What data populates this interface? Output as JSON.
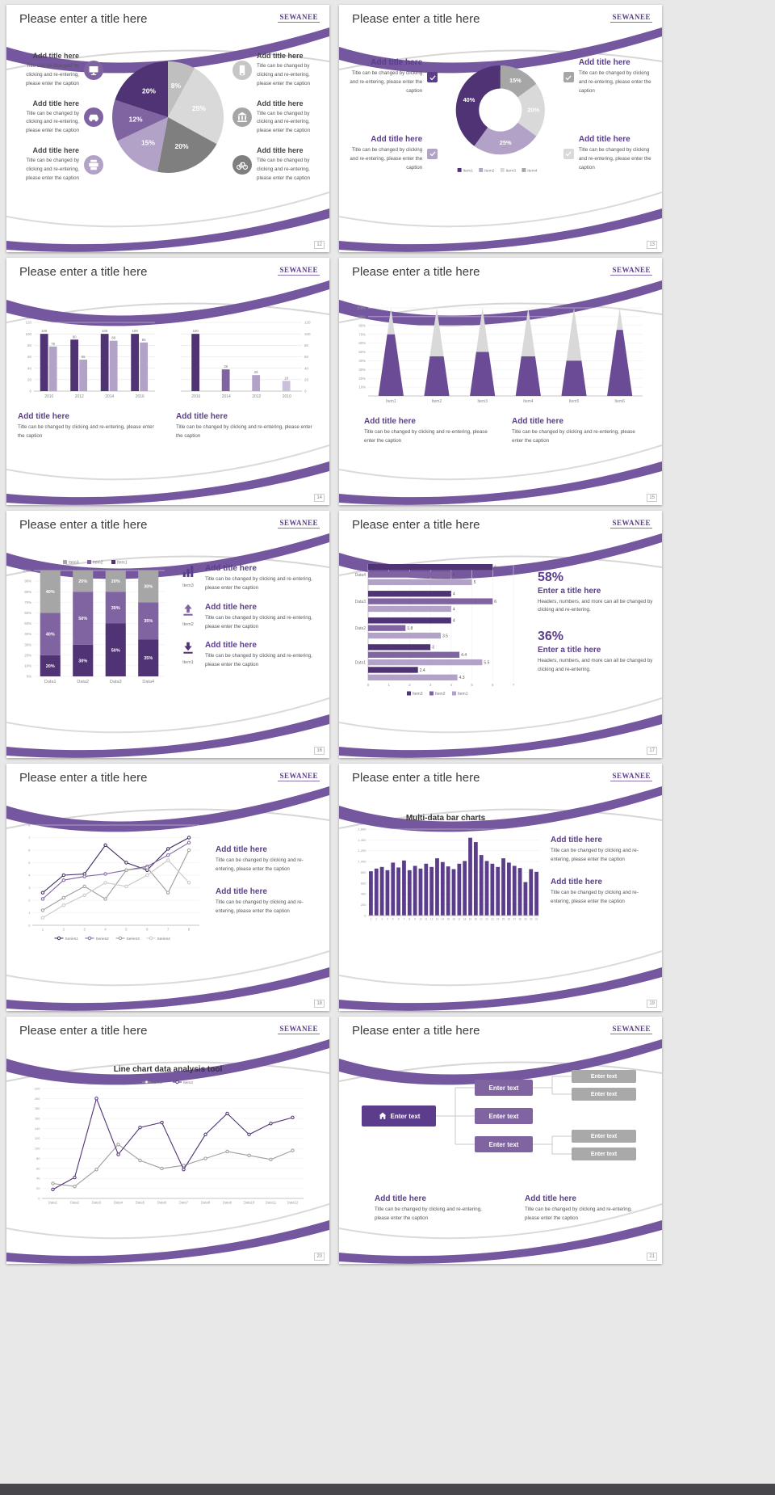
{
  "page": {
    "background_color": "#e8e8e8",
    "bottom_bar_color": "#46464b"
  },
  "theme": {
    "accent_purple": "#5b3d8c",
    "purple_dark": "#4f3374",
    "purple_mid": "#8064a2",
    "purple_light": "#b3a2c7",
    "ribbon_purple": "#75579f",
    "gray_dark": "#7f7f7f",
    "gray": "#a6a6a6",
    "gray_light": "#d9d9d9"
  },
  "common": {
    "slide_title": "Please enter a title here",
    "logo_text": "SEWANEE",
    "add_title": "Add title here",
    "caption": "Title can be changed by clicking and re-entering, please enter the caption",
    "stat_caption": "Headers, numbers, and more can all be changed by clicking and re-entering.",
    "enter_title": "Enter a title here",
    "enter_text": "Enter text"
  },
  "slides": {
    "s12": {
      "page": "12",
      "blocks": [
        {
          "icon": "monitor"
        },
        {
          "icon": "car"
        },
        {
          "icon": "printer"
        },
        {
          "icon": "phone"
        },
        {
          "icon": "bank"
        },
        {
          "icon": "bicycle"
        }
      ]
    },
    "s13": {
      "page": "13",
      "checkboxes": [
        {
          "icon": "check",
          "color": "#5b3d8c"
        },
        {
          "icon": "check",
          "color": "#a6a6a6"
        },
        {
          "icon": "check",
          "color": "#b3a2c7"
        },
        {
          "icon": "check",
          "color": "#d9d9d9"
        }
      ]
    },
    "s14": {
      "page": "14"
    },
    "s15": {
      "page": "15"
    },
    "s16": {
      "page": "16",
      "items": [
        {
          "icon": "chart",
          "name": "Item3"
        },
        {
          "icon": "upload",
          "name": "Item2"
        },
        {
          "icon": "download",
          "name": "Item1"
        }
      ]
    },
    "s17": {
      "page": "17",
      "stats": [
        {
          "value": "58%"
        },
        {
          "value": "36%"
        }
      ]
    },
    "s18": {
      "page": "18"
    },
    "s19": {
      "page": "19"
    },
    "s20": {
      "page": "20"
    },
    "s21": {
      "page": "21",
      "icon": "home"
    }
  },
  "chart_data": [
    {
      "type": "pie",
      "slide": "12",
      "values": [
        8,
        25,
        20,
        15,
        12,
        20
      ],
      "labels": [
        "8%",
        "25%",
        "20%",
        "15%",
        "12%",
        "20%"
      ],
      "colors": [
        "#bfbfbf",
        "#d9d9d9",
        "#7f7f7f",
        "#b3a2c7",
        "#8064a2",
        "#4f3374"
      ]
    },
    {
      "type": "donut",
      "slide": "13",
      "values": [
        15,
        20,
        25,
        40
      ],
      "labels": [
        "15%",
        "20%",
        "25%",
        "40%"
      ],
      "colors": [
        "#a6a6a6",
        "#d9d9d9",
        "#b3a2c7",
        "#4f3374"
      ],
      "legend": [
        {
          "name": "Item1",
          "color": "#4f3374"
        },
        {
          "name": "Item2",
          "color": "#b3a2c7"
        },
        {
          "name": "Item3",
          "color": "#d9d9d9"
        },
        {
          "name": "Item4",
          "color": "#a6a6a6"
        }
      ]
    },
    {
      "type": "groupbar",
      "slide": "14",
      "axis": "left",
      "categories": [
        "2010",
        "2012",
        "2014",
        "2016"
      ],
      "series": [
        {
          "name": "Series1",
          "color": "#4f3374",
          "values": [
            100,
            90,
            100,
            100
          ]
        },
        {
          "name": "Series2",
          "color": "#b3a2c7",
          "values": [
            78,
            55,
            88,
            85
          ]
        }
      ],
      "ymax": 120,
      "yticks": [
        0,
        20,
        40,
        60,
        80,
        100,
        120
      ]
    },
    {
      "type": "groupbar",
      "slide": "14",
      "axis": "right",
      "categories": [
        "2016",
        "2014",
        "2012",
        "2010"
      ],
      "series": [
        {
          "name": "Series1",
          "colors": [
            "#4f3374",
            "#8064a2",
            "#b3a2c7",
            "#cbc0dc"
          ],
          "values": [
            100,
            38,
            28,
            18
          ]
        }
      ],
      "ymax": 120,
      "yticks": [
        0,
        20,
        40,
        60,
        80,
        100,
        120
      ]
    },
    {
      "type": "cone",
      "slide": "15",
      "categories": [
        "Item1",
        "Item2",
        "Item3",
        "Item4",
        "Item5",
        "Item6"
      ],
      "values": [
        70,
        45,
        50,
        45,
        40,
        75
      ],
      "total": 100,
      "cone_color": "#6b4a96",
      "rest_color": "#d9d9d9",
      "yticks": [
        "10%",
        "20%",
        "30%",
        "40%",
        "50%",
        "60%",
        "70%",
        "80%",
        "90%",
        "100%"
      ]
    },
    {
      "type": "stackbar",
      "slide": "16",
      "categories": [
        "Data1",
        "Data2",
        "Data3",
        "Data4"
      ],
      "series": [
        {
          "name": "Item1",
          "color": "#4f3374",
          "values": [
            20,
            30,
            50,
            35
          ]
        },
        {
          "name": "Item2",
          "color": "#8064a2",
          "values": [
            40,
            50,
            30,
            35
          ]
        },
        {
          "name": "Item3",
          "color": "#a6a6a6",
          "values": [
            40,
            20,
            20,
            30
          ]
        }
      ],
      "legend": [
        {
          "name": "Item3",
          "color": "#a6a6a6"
        },
        {
          "name": "Item2",
          "color": "#8064a2"
        },
        {
          "name": "Item1",
          "color": "#4f3374"
        }
      ],
      "yticks": [
        "0%",
        "10%",
        "20%",
        "30%",
        "40%",
        "50%",
        "60%",
        "70%",
        "80%",
        "90%",
        "100%"
      ]
    },
    {
      "type": "hbar",
      "slide": "17",
      "groups": [
        {
          "label": "Data4",
          "bars": [
            {
              "value": 6,
              "color": "#4f3374"
            },
            {
              "value": 4,
              "color": "#8064a2"
            },
            {
              "value": 5,
              "color": "#b3a2c7"
            }
          ]
        },
        {
          "label": "Data3",
          "bars": [
            {
              "value": 4,
              "color": "#4f3374"
            },
            {
              "value": 6,
              "color": "#8064a2"
            },
            {
              "value": 4,
              "color": "#b3a2c7"
            }
          ]
        },
        {
          "label": "Data2",
          "bars": [
            {
              "value": 4,
              "color": "#4f3374"
            },
            {
              "value": 1.8,
              "color": "#8064a2"
            },
            {
              "value": 3.5,
              "color": "#b3a2c7"
            }
          ]
        },
        {
          "label": "Data1",
          "bars": [
            {
              "value": 3,
              "color": "#4f3374"
            },
            {
              "value": 4.4,
              "color": "#8064a2"
            },
            {
              "value": 5.5,
              "color": "#b3a2c7"
            },
            {
              "value": 2.4,
              "color": "#4f3374"
            },
            {
              "value": 4.3,
              "color": "#b3a2c7"
            }
          ]
        }
      ],
      "xticks": [
        0,
        1,
        2,
        3,
        4,
        5,
        6,
        7
      ],
      "legend": [
        {
          "name": "Item3",
          "color": "#4f3374"
        },
        {
          "name": "Item2",
          "color": "#8064a2"
        },
        {
          "name": "Item1",
          "color": "#b3a2c7"
        }
      ]
    },
    {
      "type": "line",
      "slide": "18",
      "legend_pos": "bottom",
      "x": [
        "1",
        "2",
        "3",
        "4",
        "5",
        "6",
        "7",
        "8"
      ],
      "ymin": 0,
      "ymax": 8,
      "ytick_step": 1,
      "series": [
        {
          "name": "Series1",
          "color": "#3e2a5e",
          "values": [
            2.6,
            4,
            4.1,
            6.4,
            5,
            4.4,
            6.1,
            7
          ]
        },
        {
          "name": "Series2",
          "color": "#8064a2",
          "values": [
            2.1,
            3.6,
            3.9,
            4.1,
            4.4,
            4.7,
            5.6,
            6.6
          ]
        },
        {
          "name": "Series3",
          "color": "#9e9e9e",
          "values": [
            1.2,
            2.2,
            3.1,
            2.1,
            4.4,
            4.6,
            2.6,
            6
          ]
        },
        {
          "name": "Series4",
          "color": "#c8c8c8",
          "values": [
            0.6,
            1.6,
            2.4,
            3.4,
            3.1,
            4,
            5.2,
            3.4
          ]
        }
      ]
    },
    {
      "type": "multibar",
      "slide": "19",
      "title": "Multi-data bar charts",
      "color": "#5b3d8c",
      "xlabels": [
        "1",
        "2",
        "3",
        "4",
        "5",
        "6",
        "7",
        "8",
        "9",
        "10",
        "11",
        "12",
        "13",
        "14",
        "15",
        "16",
        "17",
        "18",
        "19",
        "20",
        "21",
        "22",
        "23",
        "24",
        "25",
        "26",
        "27",
        "28",
        "29",
        "30",
        "31"
      ],
      "values": [
        820,
        870,
        900,
        840,
        980,
        890,
        1020,
        840,
        920,
        870,
        960,
        900,
        1060,
        990,
        910,
        860,
        960,
        1010,
        1440,
        1360,
        1120,
        1010,
        960,
        900,
        1060,
        980,
        920,
        880,
        620,
        860,
        810
      ],
      "ymax": 1600,
      "yticks": [
        "0",
        "200",
        "400",
        "600",
        "800",
        "1,000",
        "1,200",
        "1,400",
        "1,600"
      ]
    },
    {
      "type": "line",
      "slide": "20",
      "title": "Line chart data analysis tool",
      "legend_pos": "top",
      "x": [
        "Data1",
        "Data2",
        "Data3",
        "Data4",
        "Data5",
        "Data6",
        "Data7",
        "Data8",
        "Data9",
        "Data10",
        "Data11",
        "Data12"
      ],
      "ymin": 0,
      "ymax": 220,
      "ytick_step": 20,
      "series": [
        {
          "name": "Item1",
          "color": "#9e9e9e",
          "values": [
            30,
            24,
            58,
            108,
            76,
            60,
            66,
            80,
            94,
            86,
            78,
            96
          ]
        },
        {
          "name": "Item2",
          "color": "#4f3374",
          "values": [
            18,
            42,
            200,
            88,
            142,
            152,
            58,
            128,
            170,
            128,
            150,
            162
          ]
        }
      ]
    }
  ]
}
